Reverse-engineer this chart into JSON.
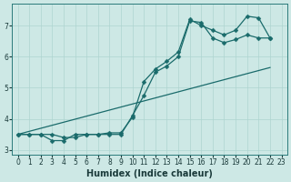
{
  "xlabel": "Humidex (Indice chaleur)",
  "bg_color": "#cde8e5",
  "grid_color": "#aed4d0",
  "line_color": "#1a6b6b",
  "xlim": [
    -0.5,
    23.5
  ],
  "ylim": [
    2.85,
    7.7
  ],
  "xticks": [
    0,
    1,
    2,
    3,
    4,
    5,
    6,
    7,
    8,
    9,
    10,
    11,
    12,
    13,
    14,
    15,
    16,
    17,
    18,
    19,
    20,
    21,
    22,
    23
  ],
  "yticks": [
    3,
    4,
    5,
    6,
    7
  ],
  "line1_x": [
    0,
    1,
    2,
    3,
    4,
    5,
    6,
    7,
    8,
    9,
    10,
    11,
    12,
    13,
    14,
    15,
    16,
    17,
    18,
    19,
    20,
    21,
    22
  ],
  "line1_y": [
    3.5,
    3.5,
    3.5,
    3.3,
    3.3,
    3.5,
    3.5,
    3.5,
    3.5,
    3.5,
    4.1,
    4.75,
    5.5,
    5.7,
    6.0,
    7.15,
    7.1,
    6.6,
    6.45,
    6.55,
    6.7,
    6.6,
    6.6
  ],
  "line2_x": [
    0,
    1,
    2,
    3,
    4,
    5,
    6,
    7,
    8,
    9,
    10,
    11,
    12,
    13,
    14,
    15,
    16,
    17,
    18,
    19,
    20,
    21,
    22
  ],
  "line2_y": [
    3.5,
    3.5,
    3.5,
    3.5,
    3.4,
    3.4,
    3.5,
    3.5,
    3.55,
    3.55,
    4.05,
    5.2,
    5.6,
    5.85,
    6.15,
    7.2,
    7.0,
    6.85,
    6.7,
    6.85,
    7.3,
    7.25,
    6.6
  ],
  "line3_x": [
    0,
    22
  ],
  "line3_y": [
    3.5,
    5.65
  ]
}
